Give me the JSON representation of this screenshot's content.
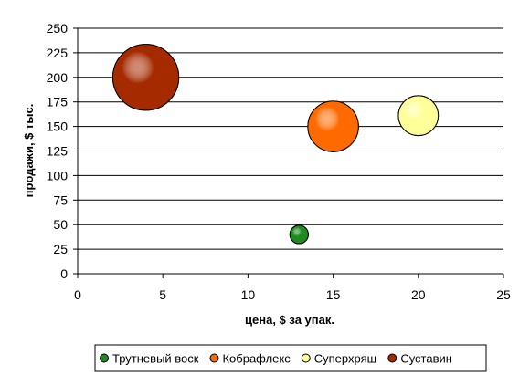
{
  "chart_data": {
    "type": "scatter",
    "variant": "bubble",
    "title": "",
    "xlabel": "цена, $ за упак.",
    "ylabel": "продажи, $ тыс.",
    "xlim": [
      0,
      25
    ],
    "ylim": [
      0,
      250
    ],
    "xticks": [
      0,
      5,
      10,
      15,
      20,
      25
    ],
    "yticks": [
      0,
      25,
      50,
      75,
      100,
      125,
      150,
      175,
      200,
      225,
      250
    ],
    "grid": "horizontal",
    "legend_position": "bottom",
    "series": [
      {
        "name": "Трутневый воск",
        "x": 13,
        "y": 40,
        "size": 1.2,
        "color": "#1f8a1f"
      },
      {
        "name": "Кобрафлекс",
        "x": 15,
        "y": 150,
        "size": 3.3,
        "color": "#ff6a00"
      },
      {
        "name": "Суперхрящ",
        "x": 20,
        "y": 161,
        "size": 2.6,
        "color": "#ffff99"
      },
      {
        "name": "Суставин",
        "x": 4,
        "y": 200,
        "size": 4.3,
        "color": "#a52a00"
      }
    ]
  }
}
